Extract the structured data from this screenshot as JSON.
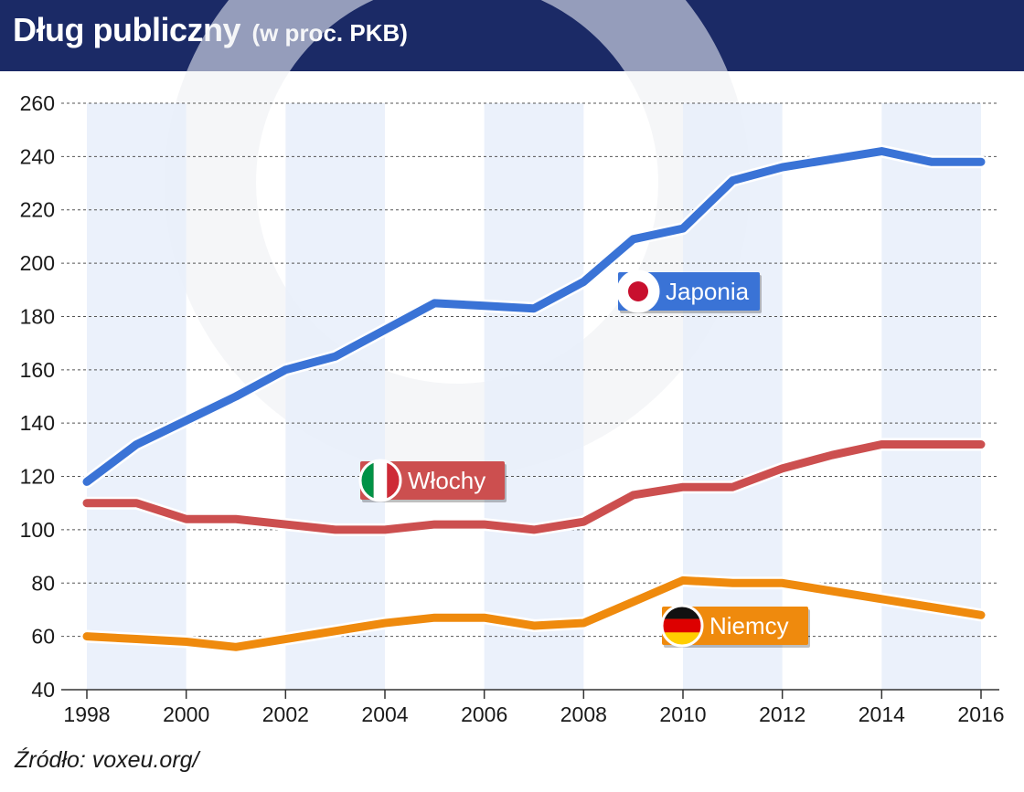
{
  "header": {
    "title": "Dług publiczny",
    "subtitle": "(w proc. PKB)"
  },
  "source": "Źródło: voxeu.org/",
  "chart_data": {
    "type": "line",
    "title": "Dług publiczny",
    "subtitle": "(w proc. PKB)",
    "xlabel": "",
    "ylabel": "",
    "x": [
      1998,
      1999,
      2000,
      2001,
      2002,
      2003,
      2004,
      2005,
      2006,
      2007,
      2008,
      2009,
      2010,
      2011,
      2012,
      2013,
      2014,
      2015,
      2016
    ],
    "x_ticks": [
      "1998",
      "2000",
      "2002",
      "2004",
      "2006",
      "2008",
      "2010",
      "2012",
      "2014",
      "2016"
    ],
    "y_ticks": [
      "40",
      "60",
      "80",
      "100",
      "120",
      "140",
      "160",
      "180",
      "200",
      "220",
      "240",
      "260"
    ],
    "ylim": [
      40,
      260
    ],
    "xlim": [
      1998,
      2016
    ],
    "grid": "horizontal dashed",
    "series": [
      {
        "name": "Japonia",
        "color": "#3a73d6",
        "flag": "japan-flag",
        "values": [
          118,
          132,
          141,
          150,
          160,
          165,
          175,
          185,
          184,
          183,
          193,
          209,
          213,
          231,
          236,
          239,
          242,
          238,
          238
        ]
      },
      {
        "name": "Włochy",
        "color": "#cc4f4f",
        "flag": "italy-flag",
        "values": [
          110,
          110,
          104,
          104,
          102,
          100,
          100,
          102,
          102,
          100,
          103,
          113,
          116,
          116,
          123,
          128,
          132,
          132,
          132
        ]
      },
      {
        "name": "Niemcy",
        "color": "#ef8a0d",
        "flag": "germany-flag",
        "values": [
          60,
          59,
          58,
          56,
          59,
          62,
          65,
          67,
          67,
          64,
          65,
          73,
          81,
          80,
          80,
          77,
          74,
          71,
          68
        ]
      }
    ]
  }
}
